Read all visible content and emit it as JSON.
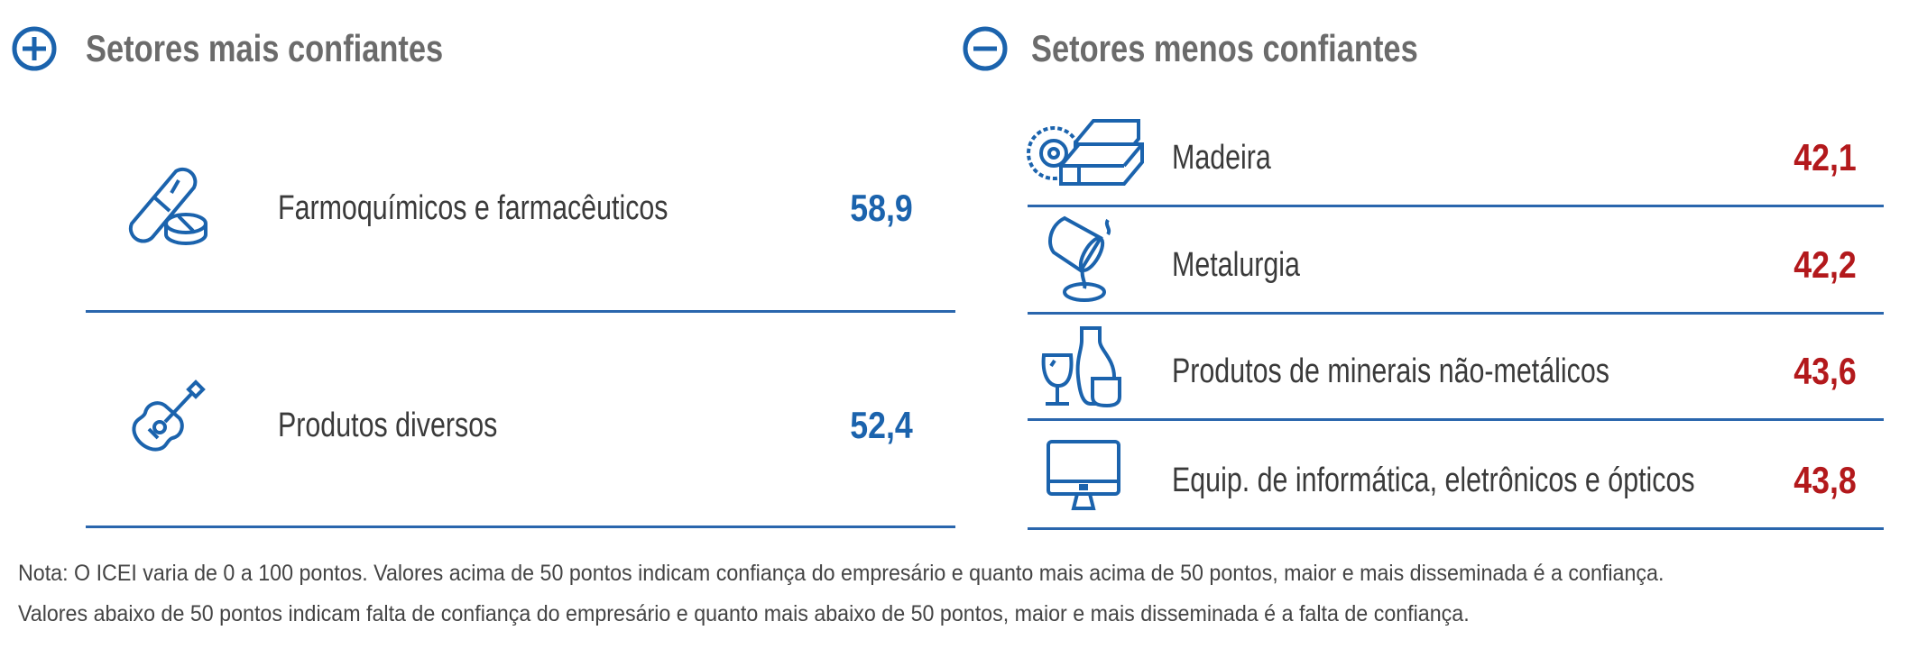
{
  "colors": {
    "accent": "#1b63ad",
    "negative": "#b3191c",
    "title": "#6b6b6b"
  },
  "left": {
    "icon": "plus-circle-icon",
    "title": "Setores mais confiantes",
    "items": [
      {
        "icon": "pill-icon",
        "label": "Farmoquímicos e farmacêuticos",
        "value": "58,9"
      },
      {
        "icon": "guitar-icon",
        "label": "Produtos diversos",
        "value": "52,4"
      }
    ]
  },
  "right": {
    "icon": "minus-circle-icon",
    "title": "Setores menos confiantes",
    "items": [
      {
        "icon": "saw-wood-icon",
        "label": "Madeira",
        "value": "42,1"
      },
      {
        "icon": "pouring-bucket-icon",
        "label": "Metalurgia",
        "value": "42,2"
      },
      {
        "icon": "glassware-icon",
        "label": "Produtos de minerais não-metálicos",
        "value": "43,6"
      },
      {
        "icon": "monitor-icon",
        "label": "Equip. de informática, eletrônicos e ópticos",
        "value": "43,8"
      }
    ]
  },
  "note": {
    "line1": "Nota: O ICEI varia de 0 a 100 pontos. Valores acima de 50 pontos indicam confiança do empresário e quanto mais acima de 50 pontos, maior e mais disseminada é a confiança.",
    "line2": "Valores abaixo de 50 pontos indicam falta de confiança do empresário e quanto mais abaixo de 50 pontos, maior e mais disseminada é a falta de confiança."
  }
}
